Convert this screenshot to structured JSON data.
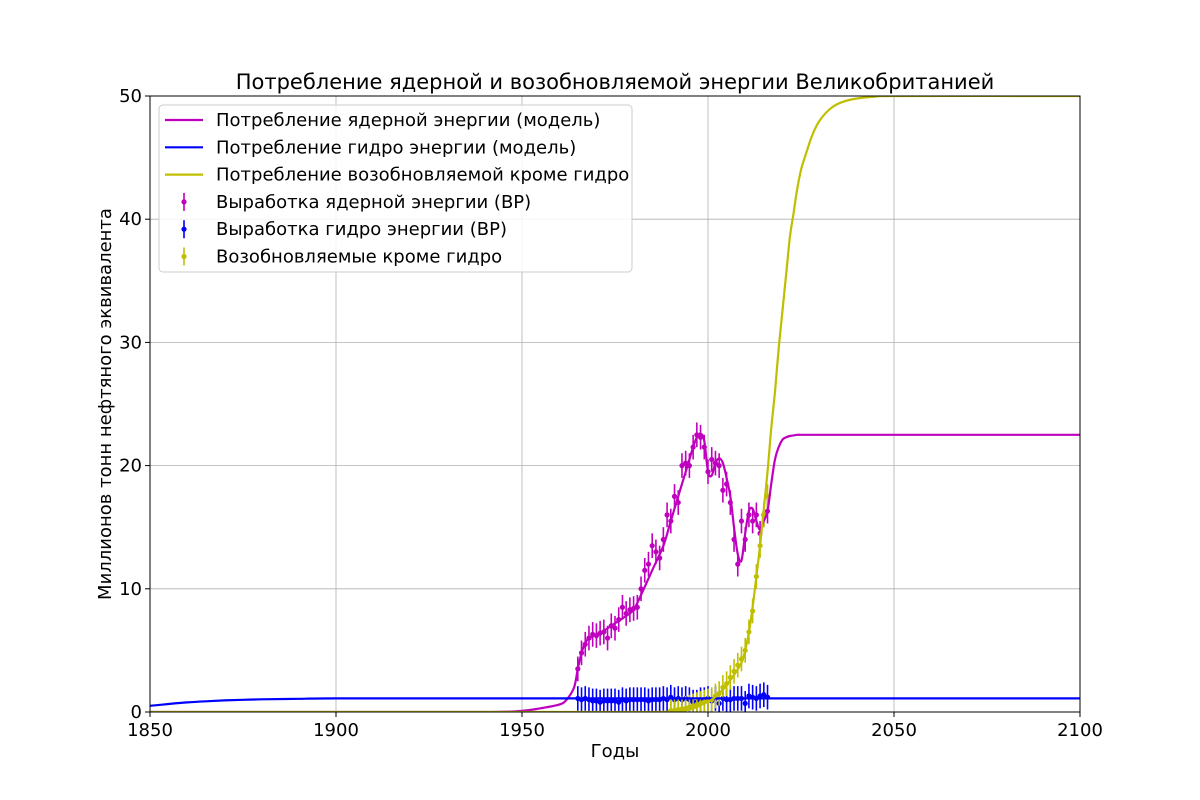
{
  "chart_data": {
    "type": "line",
    "title": "Потребление ядерной и возобновляемой энергии Великобританией",
    "xlabel": "Годы",
    "ylabel": "Миллионов тонн нефтяного эквивалента",
    "xlim": [
      1850,
      2100
    ],
    "ylim": [
      0,
      50
    ],
    "xticks": [
      "1850",
      "1900",
      "1950",
      "2000",
      "2050",
      "2100"
    ],
    "yticks": [
      "0",
      "10",
      "20",
      "30",
      "40",
      "50"
    ],
    "grid": true,
    "legend_position": "top-left",
    "series": [
      {
        "name": "Потребление ядерной энергии (модель)",
        "kind": "line",
        "color": "#bf00bf",
        "x": [
          1850,
          1900,
          1940,
          1950,
          1955,
          1960,
          1962,
          1964,
          1965,
          1966,
          1967,
          1968,
          1970,
          1972,
          1975,
          1978,
          1980,
          1982,
          1985,
          1988,
          1990,
          1992,
          1994,
          1995,
          1996,
          1997,
          1998,
          1999,
          2000,
          2001,
          2002,
          2003,
          2004,
          2005,
          2006,
          2007,
          2008,
          2009,
          2010,
          2011,
          2012,
          2013,
          2014,
          2015,
          2016,
          2017,
          2018,
          2019,
          2020,
          2021,
          2022,
          2023,
          2024,
          2025,
          2030,
          2050,
          2100
        ],
        "y": [
          0,
          0,
          0,
          0.1,
          0.3,
          0.6,
          1.0,
          2.0,
          3.5,
          4.8,
          5.6,
          6.0,
          6.3,
          6.6,
          7.2,
          7.8,
          8.3,
          9.5,
          11.5,
          13.5,
          15.5,
          17.5,
          19.5,
          20.5,
          21.5,
          22.3,
          22.6,
          22.0,
          19.5,
          19.2,
          20.2,
          20.6,
          20.2,
          19.0,
          17.5,
          15.0,
          12.8,
          12.3,
          14.5,
          16.3,
          16.5,
          15.5,
          14.8,
          15.5,
          16.3,
          18.5,
          20.5,
          21.5,
          22.1,
          22.3,
          22.4,
          22.45,
          22.5,
          22.5,
          22.5,
          22.5,
          22.5
        ]
      },
      {
        "name": "Потребление гидро энергии (модель)",
        "kind": "line",
        "color": "#0000ff",
        "x": [
          1850,
          1855,
          1860,
          1865,
          1870,
          1875,
          1880,
          1890,
          1900,
          1950,
          2000,
          2050,
          2100
        ],
        "y": [
          0.5,
          0.65,
          0.78,
          0.87,
          0.94,
          0.99,
          1.03,
          1.07,
          1.1,
          1.1,
          1.1,
          1.1,
          1.1
        ]
      },
      {
        "name": "Потребление возобновляемой кроме гидро",
        "kind": "line",
        "color": "#bfbf00",
        "x": [
          1850,
          1950,
          1985,
          1990,
          1993,
          1995,
          1997,
          1999,
          2001,
          2003,
          2005,
          2007,
          2009,
          2010,
          2011,
          2012,
          2013,
          2014,
          2015,
          2016,
          2017,
          2018,
          2019,
          2020,
          2021,
          2022,
          2023,
          2024,
          2025,
          2026,
          2028,
          2030,
          2033,
          2036,
          2040,
          2045,
          2050,
          2100
        ],
        "y": [
          0,
          0,
          0,
          0.05,
          0.1,
          0.2,
          0.4,
          0.7,
          1.0,
          1.5,
          2.2,
          3.0,
          4.0,
          5.0,
          6.5,
          8.5,
          11.0,
          13.5,
          16.5,
          19.5,
          23.0,
          26.0,
          29.5,
          32.5,
          35.5,
          38.5,
          40.5,
          42.5,
          44.0,
          45.0,
          46.8,
          48.0,
          49.0,
          49.5,
          49.8,
          49.95,
          50,
          50
        ]
      },
      {
        "name": "Выработка ядерной энергии (BP)",
        "kind": "errorbar",
        "color": "#bf00bf",
        "x": [
          1965,
          1966,
          1967,
          1968,
          1969,
          1970,
          1971,
          1972,
          1973,
          1974,
          1975,
          1976,
          1977,
          1978,
          1979,
          1980,
          1981,
          1982,
          1983,
          1984,
          1985,
          1986,
          1987,
          1988,
          1989,
          1990,
          1991,
          1992,
          1993,
          1994,
          1995,
          1996,
          1997,
          1998,
          1999,
          2000,
          2001,
          2002,
          2003,
          2004,
          2005,
          2006,
          2007,
          2008,
          2009,
          2010,
          2011,
          2012,
          2013,
          2014,
          2015,
          2016
        ],
        "y": [
          3.5,
          4.8,
          5.5,
          6.0,
          6.3,
          6.2,
          6.4,
          6.5,
          6.0,
          7.0,
          6.8,
          7.5,
          8.5,
          8.0,
          8.3,
          8.4,
          8.5,
          10.0,
          11.5,
          12.0,
          13.5,
          13.0,
          12.5,
          14.0,
          16.0,
          15.5,
          17.5,
          17.0,
          20.0,
          20.2,
          20.0,
          21.5,
          22.5,
          22.3,
          21.5,
          19.5,
          20.5,
          20.2,
          20.0,
          18.0,
          18.5,
          17.0,
          14.0,
          12.0,
          15.5,
          14.0,
          16.0,
          15.5,
          16.0,
          14.5,
          16.0,
          16.3
        ],
        "err": 1.0
      },
      {
        "name": "Выработка гидро энергии (BP)",
        "kind": "errorbar",
        "color": "#0000ff",
        "x": [
          1965,
          1966,
          1967,
          1968,
          1969,
          1970,
          1971,
          1972,
          1973,
          1974,
          1975,
          1976,
          1977,
          1978,
          1979,
          1980,
          1981,
          1982,
          1983,
          1984,
          1985,
          1986,
          1987,
          1988,
          1989,
          1990,
          1991,
          1992,
          1993,
          1994,
          1995,
          1996,
          1997,
          1998,
          1999,
          2000,
          2001,
          2002,
          2003,
          2004,
          2005,
          2006,
          2007,
          2008,
          2009,
          2010,
          2011,
          2012,
          2013,
          2014,
          2015,
          2016
        ],
        "y": [
          1.1,
          1.0,
          1.1,
          1.0,
          0.9,
          0.9,
          0.8,
          0.9,
          0.9,
          0.9,
          0.9,
          0.8,
          1.0,
          0.9,
          1.0,
          1.0,
          1.0,
          1.0,
          1.0,
          0.9,
          1.0,
          1.0,
          1.0,
          1.1,
          1.0,
          1.2,
          1.0,
          1.1,
          1.0,
          1.1,
          1.0,
          0.8,
          0.8,
          1.0,
          1.0,
          1.1,
          0.9,
          1.1,
          0.7,
          1.1,
          1.0,
          1.0,
          1.1,
          1.1,
          1.1,
          0.7,
          1.3,
          1.2,
          1.1,
          1.3,
          1.4,
          1.2
        ],
        "err": 1.0
      },
      {
        "name": "Возобновляемые кроме гидро",
        "kind": "errorbar",
        "color": "#bfbf00",
        "x": [
          1990,
          1991,
          1992,
          1993,
          1994,
          1995,
          1996,
          1997,
          1998,
          1999,
          2000,
          2001,
          2002,
          2003,
          2004,
          2005,
          2006,
          2007,
          2008,
          2009,
          2010,
          2011,
          2012,
          2013,
          2014,
          2015,
          2016
        ],
        "y": [
          0.1,
          0.15,
          0.2,
          0.25,
          0.3,
          0.4,
          0.5,
          0.6,
          0.7,
          0.8,
          0.9,
          1.0,
          1.3,
          1.5,
          2.0,
          2.3,
          2.8,
          3.3,
          3.8,
          4.3,
          5.0,
          6.5,
          8.2,
          11.0,
          13.5,
          16.0,
          17.5
        ],
        "err": 1.0
      }
    ]
  }
}
